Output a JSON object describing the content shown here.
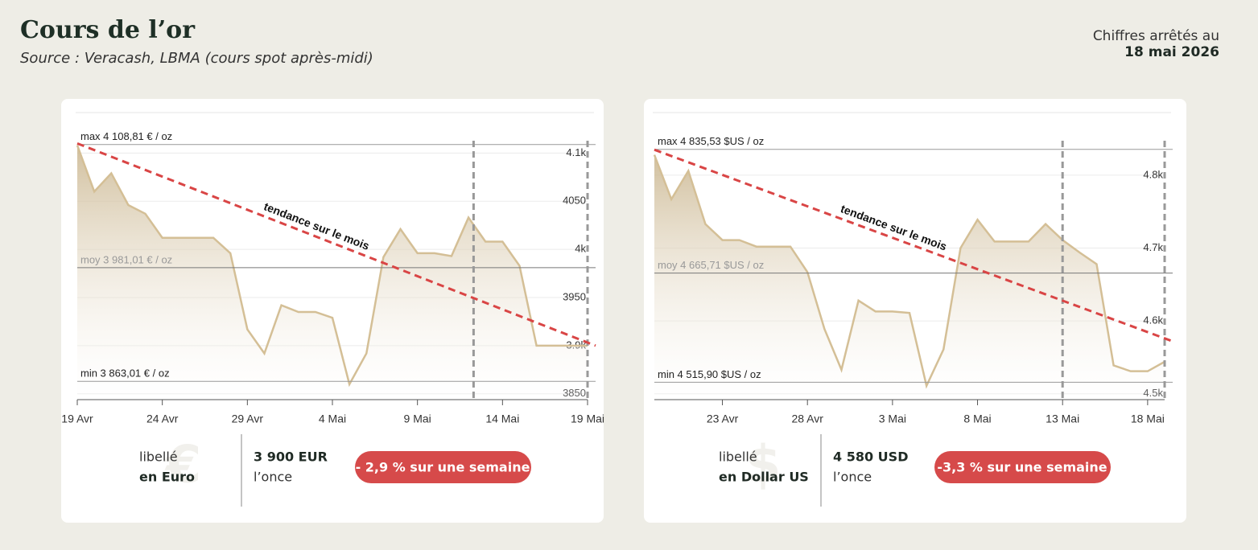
{
  "header": {
    "title": "Cours de l’or",
    "source": "Source : Veracash, LBMA (cours spot après-midi)",
    "date_note": "Chiffres arrêtés au",
    "date": "18 mai 2026"
  },
  "chart_data": [
    {
      "type": "area",
      "color": "#d4bf96",
      "grid": true,
      "categories": [
        "19 Avr",
        null,
        null,
        null,
        null,
        "24 Avr",
        null,
        null,
        null,
        null,
        "29 Avr",
        null,
        null,
        null,
        null,
        "4 Mai",
        null,
        null,
        null,
        null,
        "9 Mai",
        null,
        null,
        null,
        null,
        "14 Mai",
        null,
        null,
        null,
        null,
        "19 Mai"
      ],
      "values": [
        4108,
        4060,
        4079,
        4046,
        4037,
        4012,
        4012,
        4012,
        4012,
        3996,
        3917,
        3892,
        3942,
        3935,
        3935,
        3929,
        3860,
        3892,
        3992,
        4021,
        3996,
        3996,
        3993,
        4033,
        4008,
        4008,
        3983,
        3900,
        3900,
        3900,
        3900
      ],
      "ylim": [
        3844,
        4142
      ],
      "yticks": [
        3850,
        {
          "value": 3900,
          "label": "3.9k"
        },
        3950,
        {
          "value": 4000,
          "label": "4k"
        },
        4050,
        {
          "value": 4100,
          "label": "4.1k"
        }
      ],
      "ref_lines": [
        {
          "label": "max 4 108,81 € / oz",
          "value": 4108.81
        },
        {
          "label": "moy 3 981,01 € / oz",
          "value": 3981.01
        },
        {
          "label": "min 3 863,01 € / oz",
          "value": 3863.01
        }
      ],
      "x_marker": 23.3,
      "trend": {
        "label": "tendance sur le mois",
        "values": [
          4110,
          3900
        ]
      },
      "footer": {
        "icon": "€",
        "line1": "libellé",
        "line2": "en Euro",
        "price": "3 900 EUR",
        "unit": "l’once",
        "change": "- 2,9 % sur une semaine"
      }
    },
    {
      "type": "area",
      "color": "#d4bf96",
      "grid": true,
      "categories": [
        null,
        null,
        null,
        null,
        "23 Avr",
        null,
        null,
        null,
        null,
        "28 Avr",
        null,
        null,
        null,
        null,
        "3 Mai",
        null,
        null,
        null,
        null,
        "8 Mai",
        null,
        null,
        null,
        null,
        "13 Mai",
        null,
        null,
        null,
        null,
        "18 Mai",
        null
      ],
      "values": [
        4828,
        4767,
        4806,
        4733,
        4711,
        4711,
        4702,
        4702,
        4702,
        4667,
        4589,
        4533,
        4628,
        4613,
        4613,
        4611,
        4511,
        4561,
        4700,
        4739,
        4709,
        4709,
        4709,
        4733,
        4711,
        4694,
        4678,
        4539,
        4531,
        4531,
        4544
      ],
      "ylim": [
        4492,
        4886
      ],
      "yticks": [
        {
          "value": 4500,
          "label": "4.5k"
        },
        {
          "value": 4600,
          "label": "4.6k"
        },
        {
          "value": 4700,
          "label": "4.7k"
        },
        {
          "value": 4800,
          "label": "4.8k"
        }
      ],
      "ref_lines": [
        {
          "label": "max 4 835,53 $US / oz",
          "value": 4835.53
        },
        {
          "label": "moy 4 665,71 $US / oz",
          "value": 4665.71
        },
        {
          "label": "min 4 515,90 $US / oz",
          "value": 4515.9
        }
      ],
      "x_marker": 24,
      "trend": {
        "label": "tendance sur le mois",
        "values": [
          4835,
          4572
        ]
      },
      "footer": {
        "icon": "$",
        "line1": "libellé",
        "line2": "en Dollar US",
        "price": "4 580 USD",
        "unit": "l’once",
        "change": "-3,3 % sur une semaine"
      }
    }
  ]
}
